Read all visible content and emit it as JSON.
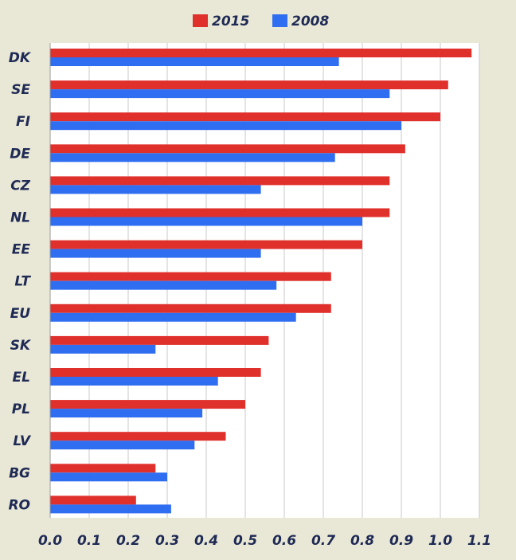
{
  "chart_data": {
    "type": "bar",
    "orientation": "horizontal",
    "title": "",
    "xlabel": "",
    "ylabel": "",
    "xlim": [
      0,
      1.1
    ],
    "x_ticks": [
      "0.0",
      "0.1",
      "0.2",
      "0.3",
      "0.4",
      "0.5",
      "0.6",
      "0.7",
      "0.8",
      "0.9",
      "1.0",
      "1.1"
    ],
    "categories": [
      "DK",
      "SE",
      "FI",
      "DE",
      "CZ",
      "NL",
      "EE",
      "LT",
      "EU",
      "SK",
      "EL",
      "PL",
      "LV",
      "BG",
      "RO"
    ],
    "series": [
      {
        "name": "2015",
        "color": "#e0302c",
        "values": [
          1.08,
          1.02,
          1.0,
          0.91,
          0.87,
          0.87,
          0.8,
          0.72,
          0.72,
          0.56,
          0.54,
          0.5,
          0.45,
          0.27,
          0.22
        ]
      },
      {
        "name": "2008",
        "color": "#2f6ef0",
        "values": [
          0.74,
          0.87,
          0.9,
          0.73,
          0.54,
          0.8,
          0.54,
          0.58,
          0.63,
          0.27,
          0.43,
          0.39,
          0.37,
          0.3,
          0.31
        ]
      }
    ],
    "grid": true,
    "legend_position": "top"
  }
}
